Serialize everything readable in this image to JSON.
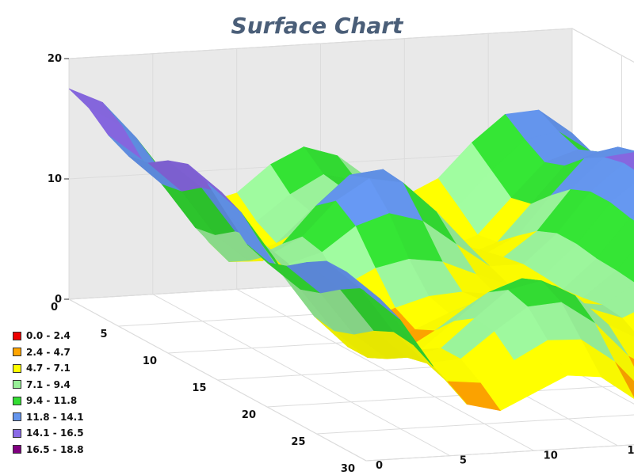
{
  "chart_data": {
    "type": "surface",
    "title": "Surface Chart",
    "xlabel": "",
    "ylabel": "",
    "zlabel": "",
    "x_ticks": [
      "0",
      "5",
      "10",
      "15",
      "20",
      "25",
      "30"
    ],
    "y_ticks": [
      "0",
      "5",
      "10",
      "15",
      "20",
      "25",
      "30"
    ],
    "z_ticks": [
      "0",
      "10",
      "20"
    ],
    "xlim": [
      0,
      30
    ],
    "ylim": [
      0,
      30
    ],
    "zlim": [
      0,
      20
    ],
    "grid": true,
    "legend_position": "bottom-left",
    "legend": [
      {
        "label": "0.0 - 2.4",
        "color": "#ee0000"
      },
      {
        "label": "2.4 - 4.7",
        "color": "#ffa500"
      },
      {
        "label": "4.7 - 7.1",
        "color": "#ffff00"
      },
      {
        "label": "7.1 - 9.4",
        "color": "#98f098"
      },
      {
        "label": "9.4 - 11.8",
        "color": "#33dd33"
      },
      {
        "label": "11.8 - 14.1",
        "color": "#6495ed"
      },
      {
        "label": "14.1 - 16.5",
        "color": "#8a6ae6"
      },
      {
        "label": "16.5 - 18.8",
        "color": "#800080"
      }
    ],
    "z_values": [
      [
        17.5,
        16.2,
        13.1,
        9.4,
        7.3,
        8.0,
        10.2,
        11.5,
        10.6,
        8.4,
        6.9,
        8.2,
        11.0,
        13.2,
        13.4,
        11.3
      ],
      [
        16.8,
        15.1,
        11.8,
        8.1,
        6.0,
        6.5,
        8.6,
        10.1,
        9.4,
        7.2,
        5.6,
        6.8,
        9.6,
        12.0,
        12.5,
        10.6
      ],
      [
        15.4,
        13.2,
        9.6,
        6.0,
        4.7,
        5.6,
        8.1,
        9.8,
        9.0,
        6.4,
        4.3,
        5.3,
        8.2,
        11.0,
        11.9,
        10.3
      ],
      [
        14.6,
        12.1,
        8.3,
        5.3,
        5.2,
        7.4,
        10.1,
        11.3,
        9.8,
        6.7,
        4.6,
        5.6,
        8.6,
        11.6,
        12.6,
        11.1
      ],
      [
        14.9,
        12.4,
        8.6,
        6.3,
        7.5,
        10.5,
        12.9,
        13.2,
        10.9,
        7.4,
        5.6,
        7.0,
        10.2,
        13.1,
        13.9,
        12.2
      ],
      [
        16.0,
        13.6,
        9.8,
        7.6,
        9.0,
        11.8,
        13.5,
        13.0,
        10.4,
        7.3,
        6.3,
        8.3,
        11.6,
        14.1,
        14.4,
        12.4
      ],
      [
        16.6,
        14.1,
        10.2,
        7.8,
        8.6,
        10.6,
        11.5,
        10.7,
        8.6,
        6.6,
        6.6,
        9.0,
        12.3,
        14.5,
        14.3,
        12.0
      ],
      [
        15.9,
        13.3,
        9.3,
        6.5,
        6.6,
        8.0,
        8.6,
        8.2,
        7.0,
        5.9,
        6.5,
        9.0,
        12.3,
        14.3,
        13.8,
        11.4
      ],
      [
        14.2,
        11.6,
        7.6,
        4.7,
        4.5,
        5.6,
        6.4,
        6.6,
        6.2,
        5.6,
        6.3,
        8.7,
        11.9,
        13.9,
        13.5,
        11.2
      ],
      [
        12.6,
        10.1,
        6.3,
        3.6,
        3.6,
        4.7,
        5.9,
        6.8,
        6.8,
        6.2,
        6.5,
        8.6,
        11.7,
        13.9,
        13.9,
        12.0
      ],
      [
        12.0,
        9.6,
        6.0,
        3.6,
        3.9,
        5.5,
        7.4,
        8.6,
        8.4,
        7.2,
        6.8,
        8.4,
        11.4,
        13.8,
        14.4,
        13.0
      ],
      [
        12.6,
        10.2,
        6.6,
        4.4,
        5.0,
        7.2,
        9.4,
        10.4,
        9.6,
        7.6,
        6.6,
        7.8,
        10.7,
        13.3,
        14.4,
        13.7
      ],
      [
        13.8,
        11.4,
        7.8,
        5.4,
        6.0,
        8.3,
        10.5,
        11.1,
        9.7,
        7.1,
        5.6,
        6.5,
        9.3,
        12.1,
        13.6,
        13.5
      ],
      [
        14.8,
        12.4,
        8.6,
        5.8,
        6.0,
        8.1,
        10.0,
        10.2,
        8.3,
        5.4,
        3.7,
        4.5,
        7.4,
        10.4,
        12.3,
        12.7
      ],
      [
        14.8,
        12.4,
        8.4,
        5.2,
        4.9,
        6.6,
        8.1,
        8.0,
        6.0,
        3.0,
        1.3,
        2.3,
        5.5,
        8.8,
        11.1,
        11.9
      ],
      [
        14.0,
        11.6,
        7.5,
        4.2,
        3.5,
        4.8,
        6.1,
        5.8,
        3.8,
        1.1,
        0.3,
        1.4,
        4.7,
        8.3,
        10.9,
        12.2
      ]
    ]
  }
}
